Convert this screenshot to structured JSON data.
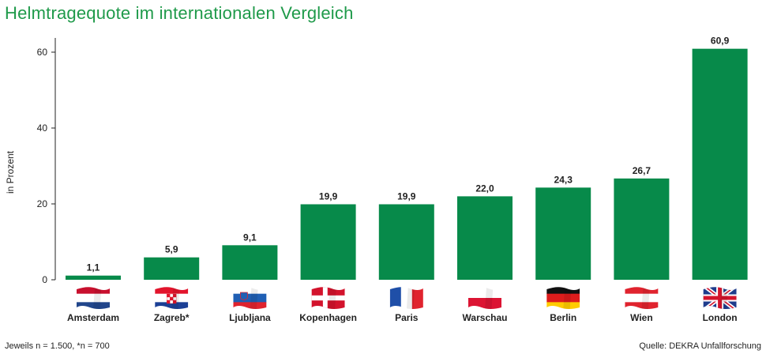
{
  "title": "Helmtragequote im internationalen Vergleich",
  "footnote_left": "Jeweils n = 1.500, *n = 700",
  "footnote_right": "Quelle: DEKRA Unfallforschung",
  "colors": {
    "bar": "#078a4a",
    "title": "#1f9a4a",
    "axis": "#222222"
  },
  "chart_data": {
    "type": "bar",
    "title": "Helmtragequote im internationalen Vergleich",
    "xlabel": "",
    "ylabel": "in Prozent",
    "ylim": [
      0,
      65
    ],
    "yticks": [
      0,
      20,
      40,
      60
    ],
    "grid": false,
    "categories": [
      "Amsterdam",
      "Zagreb*",
      "Ljubljana",
      "Kopenhagen",
      "Paris",
      "Warschau",
      "Berlin",
      "Wien",
      "London"
    ],
    "values": [
      1.1,
      5.9,
      9.1,
      19.9,
      19.9,
      22.0,
      24.3,
      26.7,
      60.9
    ],
    "value_labels": [
      "1,1",
      "5,9",
      "9,1",
      "19,9",
      "19,9",
      "22,0",
      "24,3",
      "26,7",
      "60,9"
    ],
    "flags": [
      "netherlands-flag",
      "croatia-flag",
      "slovenia-flag",
      "denmark-flag",
      "france-flag",
      "poland-flag",
      "germany-flag",
      "austria-flag",
      "uk-flag"
    ]
  }
}
